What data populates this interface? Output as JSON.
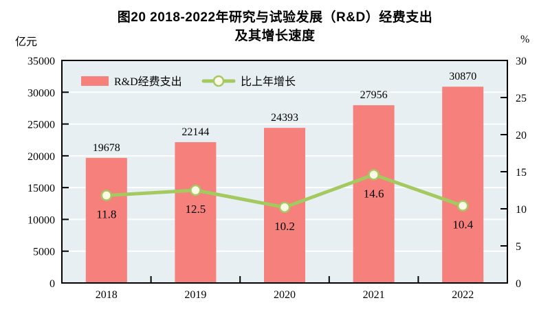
{
  "title": {
    "line1": "图20  2018-2022年研究与试验发展（R&D）经费支出",
    "line2": "及其增长速度"
  },
  "axes": {
    "left_unit": "亿元",
    "right_unit": "%"
  },
  "chart_data": {
    "type": "bar",
    "title": "图20 2018-2022年研究与试验发展（R&D）经费支出及其增长速度",
    "categories": [
      "2018",
      "2019",
      "2020",
      "2021",
      "2022"
    ],
    "series": [
      {
        "name": "R&D经费支出",
        "type": "bar",
        "axis": "left",
        "values": [
          19678,
          22144,
          24393,
          27956,
          30870
        ],
        "color": "#f5807c"
      },
      {
        "name": "比上年增长",
        "type": "line",
        "axis": "right",
        "values": [
          11.8,
          12.5,
          10.2,
          14.6,
          10.4
        ],
        "color": "#a3c95f",
        "marker_fill": "#fdfbe8"
      }
    ],
    "left_axis": {
      "label": "亿元",
      "min": 0,
      "max": 35000,
      "step": 5000,
      "ticks": [
        0,
        5000,
        10000,
        15000,
        20000,
        25000,
        30000,
        35000
      ]
    },
    "right_axis": {
      "label": "%",
      "min": 0,
      "max": 30,
      "step": 5,
      "ticks": [
        0,
        5,
        10,
        15,
        20,
        25,
        30
      ]
    },
    "legend_position": "top-inside",
    "grid": true,
    "colors": {
      "plot_bg": "#e7eff2",
      "gridline": "#ffffff",
      "border": "#000000",
      "text": "#000000"
    }
  }
}
